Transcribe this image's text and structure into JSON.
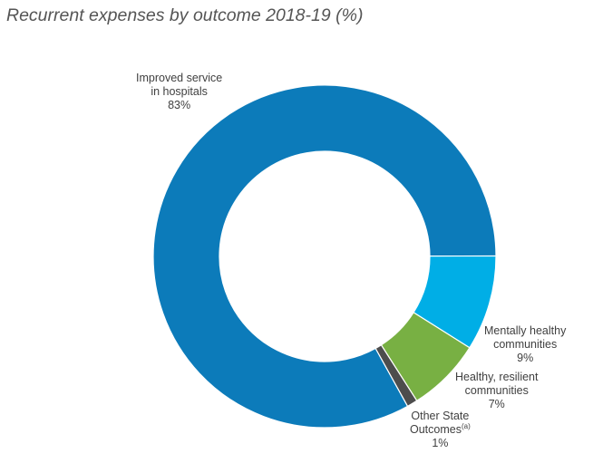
{
  "chart_data": {
    "type": "pie",
    "title": "Recurrent expenses by outcome 2018-19 (%)",
    "hole": true,
    "categories": [
      "Improved service in hospitals",
      "Mentally healthy communities",
      "Healthy, resilient communities",
      "Other State Outcomes(a)"
    ],
    "values": [
      83,
      9,
      7,
      1
    ],
    "colors": [
      "#0C7BBA",
      "#00AEE6",
      "#78B043",
      "#4D4D4D"
    ],
    "labels": [
      {
        "lines": [
          "Improved service",
          "in hospitals"
        ],
        "pct": "83%"
      },
      {
        "lines": [
          "Mentally healthy",
          "communities"
        ],
        "pct": "9%"
      },
      {
        "lines": [
          "Healthy, resilient",
          "communities"
        ],
        "pct": "7%"
      },
      {
        "lines": [
          "Other State",
          "Outcomes"
        ],
        "sup": "(a)",
        "pct": "1%"
      }
    ]
  }
}
